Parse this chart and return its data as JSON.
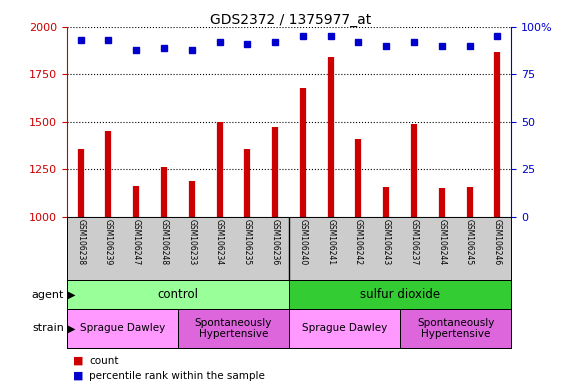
{
  "title": "GDS2372 / 1375977_at",
  "samples": [
    "GSM106238",
    "GSM106239",
    "GSM106247",
    "GSM106248",
    "GSM106233",
    "GSM106234",
    "GSM106235",
    "GSM106236",
    "GSM106240",
    "GSM106241",
    "GSM106242",
    "GSM106243",
    "GSM106237",
    "GSM106244",
    "GSM106245",
    "GSM106246"
  ],
  "counts": [
    1360,
    1450,
    1165,
    1265,
    1190,
    1500,
    1355,
    1475,
    1680,
    1840,
    1410,
    1160,
    1490,
    1150,
    1155,
    1870
  ],
  "percentiles": [
    93,
    93,
    88,
    89,
    88,
    92,
    91,
    92,
    95,
    95,
    92,
    90,
    92,
    90,
    90,
    95
  ],
  "ylim_left": [
    1000,
    2000
  ],
  "ylim_right": [
    0,
    100
  ],
  "bar_color": "#cc0000",
  "dot_color": "#0000cc",
  "agent_groups": [
    {
      "label": "control",
      "start": 0,
      "end": 8,
      "color": "#99ff99"
    },
    {
      "label": "sulfur dioxide",
      "start": 8,
      "end": 16,
      "color": "#33cc33"
    }
  ],
  "strain_groups": [
    {
      "label": "Sprague Dawley",
      "start": 0,
      "end": 4,
      "color": "#ff99ff"
    },
    {
      "label": "Spontaneously\nHypertensive",
      "start": 4,
      "end": 8,
      "color": "#dd66dd"
    },
    {
      "label": "Sprague Dawley",
      "start": 8,
      "end": 12,
      "color": "#ff99ff"
    },
    {
      "label": "Spontaneously\nHypertensive",
      "start": 12,
      "end": 16,
      "color": "#dd66dd"
    }
  ],
  "yticks_left": [
    1000,
    1250,
    1500,
    1750,
    2000
  ],
  "yticks_right": [
    0,
    25,
    50,
    75,
    100
  ],
  "tick_area_color": "#cccccc",
  "legend_items": [
    {
      "label": "count",
      "color": "#cc0000"
    },
    {
      "label": "percentile rank within the sample",
      "color": "#0000cc"
    }
  ]
}
